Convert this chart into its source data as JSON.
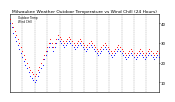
{
  "title": "Milwaukee Weather Outdoor Temperature vs Wind Chill (24 Hours)",
  "title_fontsize": 3.2,
  "background_color": "#ffffff",
  "plot_bg_color": "#ffffff",
  "grid_color": "#888888",
  "tick_fontsize": 2.8,
  "ylim": [
    5,
    45
  ],
  "xlim": [
    0,
    288
  ],
  "ytick_positions": [
    10,
    20,
    30,
    40
  ],
  "ytick_labels": [
    "10",
    "20",
    "30",
    "40"
  ],
  "vgrid_positions": [
    24,
    48,
    72,
    96,
    120,
    144,
    168,
    192,
    216,
    240,
    264
  ],
  "temp_x": [
    0,
    3,
    6,
    9,
    12,
    15,
    18,
    21,
    24,
    27,
    30,
    33,
    36,
    39,
    42,
    45,
    48,
    51,
    54,
    57,
    60,
    63,
    66,
    69,
    72,
    75,
    78,
    81,
    84,
    87,
    90,
    93,
    96,
    99,
    102,
    105,
    108,
    111,
    114,
    117,
    120,
    123,
    126,
    129,
    132,
    135,
    138,
    141,
    144,
    147,
    150,
    153,
    156,
    159,
    162,
    165,
    168,
    171,
    174,
    177,
    180,
    183,
    186,
    189,
    192,
    195,
    198,
    201,
    204,
    207,
    210,
    213,
    216,
    219,
    222,
    225,
    228,
    231,
    234,
    237,
    240,
    243,
    246,
    249,
    252,
    255,
    258,
    261,
    264,
    267,
    270,
    273,
    276,
    279,
    282,
    285,
    288
  ],
  "temp_y": [
    42,
    40,
    38,
    36,
    34,
    32,
    30,
    28,
    26,
    24,
    22,
    20,
    18,
    16,
    15,
    14,
    13,
    14,
    16,
    18,
    20,
    22,
    24,
    26,
    28,
    30,
    32,
    30,
    28,
    30,
    32,
    34,
    33,
    32,
    31,
    30,
    31,
    32,
    33,
    32,
    31,
    30,
    29,
    30,
    31,
    32,
    31,
    30,
    29,
    28,
    29,
    30,
    31,
    30,
    29,
    28,
    27,
    26,
    27,
    28,
    29,
    30,
    29,
    28,
    27,
    26,
    25,
    26,
    27,
    28,
    29,
    28,
    27,
    26,
    25,
    24,
    25,
    26,
    27,
    26,
    25,
    24,
    25,
    26,
    27,
    26,
    25,
    24,
    25,
    26,
    27,
    26,
    25,
    24,
    25,
    26,
    25
  ],
  "chill_x": [
    0,
    3,
    6,
    9,
    12,
    15,
    18,
    21,
    24,
    27,
    30,
    33,
    36,
    39,
    42,
    45,
    48,
    51,
    54,
    57,
    60,
    63,
    66,
    69,
    72,
    75,
    78,
    81,
    84,
    87,
    90,
    93,
    96,
    99,
    102,
    105,
    108,
    111,
    114,
    117,
    120,
    123,
    126,
    129,
    132,
    135,
    138,
    141,
    144,
    147,
    150,
    153,
    156,
    159,
    162,
    165,
    168,
    171,
    174,
    177,
    180,
    183,
    186,
    189,
    192,
    195,
    198,
    201,
    204,
    207,
    210,
    213,
    216,
    219,
    222,
    225,
    228,
    231,
    234,
    237,
    240,
    243,
    246,
    249,
    252,
    255,
    258,
    261,
    264,
    267,
    270,
    273,
    276,
    279,
    282,
    285,
    288
  ],
  "chill_y": [
    40,
    38,
    35,
    33,
    31,
    29,
    27,
    25,
    23,
    21,
    19,
    17,
    15,
    13,
    12,
    11,
    10,
    11,
    13,
    15,
    17,
    19,
    22,
    24,
    26,
    28,
    30,
    28,
    26,
    28,
    30,
    32,
    31,
    30,
    29,
    28,
    29,
    30,
    31,
    30,
    29,
    28,
    27,
    28,
    29,
    30,
    29,
    28,
    27,
    26,
    27,
    28,
    29,
    28,
    27,
    26,
    25,
    24,
    25,
    26,
    27,
    28,
    27,
    26,
    25,
    24,
    23,
    24,
    25,
    26,
    27,
    26,
    25,
    24,
    23,
    22,
    23,
    24,
    25,
    24,
    23,
    22,
    23,
    24,
    25,
    24,
    23,
    22,
    23,
    24,
    25,
    24,
    23,
    22,
    23,
    24,
    23
  ],
  "temp_color": "#ff0000",
  "chill_color": "#0000ff",
  "marker_size": 0.6,
  "legend_label_temp": "Outdoor Temp",
  "legend_label_chill": "Wind Chill",
  "legend_color_temp": "#ff0000",
  "legend_color_chill": "#0000ff"
}
